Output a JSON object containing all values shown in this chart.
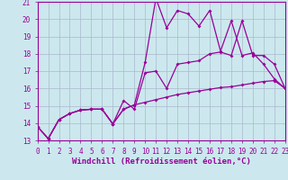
{
  "xlabel": "Windchill (Refroidissement éolien,°C)",
  "xlim": [
    0,
    23
  ],
  "ylim": [
    13,
    21
  ],
  "xticks": [
    0,
    1,
    2,
    3,
    4,
    5,
    6,
    7,
    8,
    9,
    10,
    11,
    12,
    13,
    14,
    15,
    16,
    17,
    18,
    19,
    20,
    21,
    22,
    23
  ],
  "yticks": [
    13,
    14,
    15,
    16,
    17,
    18,
    19,
    20,
    21
  ],
  "background_color": "#cce8ee",
  "grid_color": "#aab8cc",
  "line_color": "#990099",
  "line1_x": [
    0,
    1,
    2,
    3,
    4,
    5,
    6,
    7,
    8,
    9,
    10,
    11,
    12,
    13,
    14,
    15,
    16,
    17,
    18,
    19,
    20,
    21,
    22,
    23
  ],
  "line1_y": [
    13.8,
    13.1,
    14.2,
    14.55,
    14.75,
    14.8,
    14.8,
    13.95,
    14.8,
    15.05,
    15.2,
    15.35,
    15.5,
    15.65,
    15.75,
    15.85,
    15.95,
    16.05,
    16.1,
    16.2,
    16.3,
    16.4,
    16.45,
    16.0
  ],
  "line2_x": [
    0,
    1,
    2,
    3,
    4,
    5,
    6,
    7,
    8,
    9,
    10,
    11,
    12,
    13,
    14,
    15,
    16,
    17,
    18,
    19,
    20,
    21,
    22,
    23
  ],
  "line2_y": [
    13.8,
    13.1,
    14.2,
    14.55,
    14.75,
    14.8,
    14.8,
    13.95,
    15.3,
    14.8,
    16.9,
    17.0,
    16.0,
    17.4,
    17.5,
    17.6,
    18.0,
    18.1,
    17.9,
    19.9,
    17.9,
    17.9,
    17.4,
    16.0
  ],
  "line3_x": [
    0,
    1,
    2,
    3,
    4,
    5,
    6,
    7,
    8,
    9,
    10,
    11,
    12,
    13,
    14,
    15,
    16,
    17,
    18,
    19,
    20,
    21,
    22,
    23
  ],
  "line3_y": [
    13.8,
    13.1,
    14.2,
    14.55,
    14.75,
    14.8,
    14.8,
    13.95,
    14.8,
    15.05,
    17.5,
    21.2,
    19.5,
    20.5,
    20.3,
    19.6,
    20.5,
    18.15,
    19.9,
    17.9,
    18.05,
    17.4,
    16.55,
    16.0
  ],
  "markersize": 2.0,
  "linewidth": 0.9,
  "tick_fontsize": 5.5,
  "xlabel_fontsize": 6.5
}
